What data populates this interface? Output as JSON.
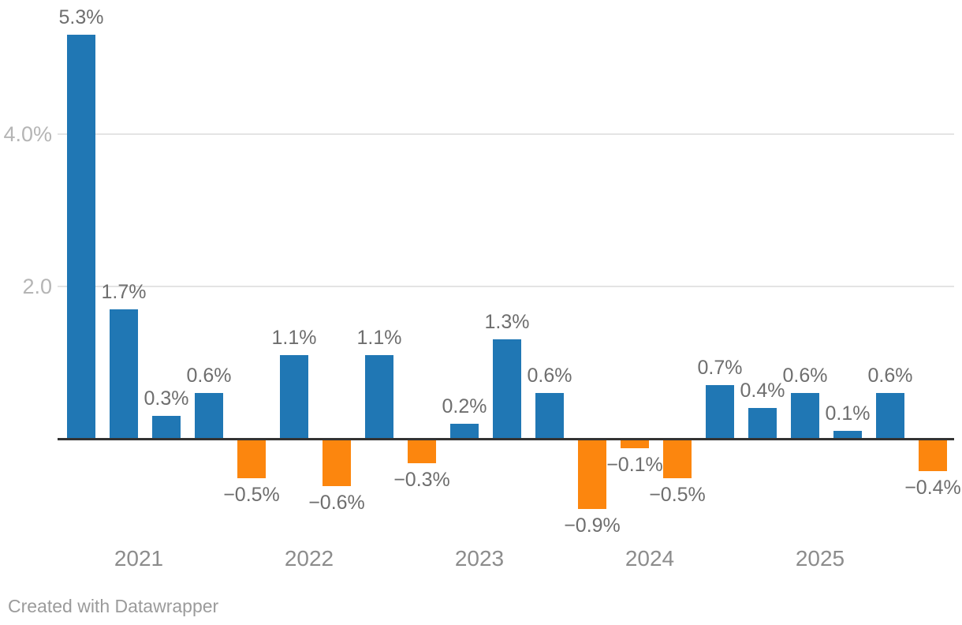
{
  "chart_data": {
    "type": "bar",
    "title": "",
    "unit": "%",
    "values": [
      5.3,
      1.7,
      0.3,
      0.6,
      -0.5,
      1.1,
      -0.6,
      1.1,
      -0.3,
      0.2,
      1.3,
      0.6,
      -0.9,
      -0.1,
      -0.5,
      0.7,
      0.4,
      0.6,
      0.1,
      0.6,
      -0.4
    ],
    "bar_labels": [
      "5.3%",
      "1.7%",
      "0.3%",
      "0.6%",
      "−0.5%",
      "1.1%",
      "−0.6%",
      "1.1%",
      "−0.3%",
      "0.2%",
      "1.3%",
      "0.6%",
      "−0.9%",
      "−0.1%",
      "−0.5%",
      "0.7%",
      "0.4%",
      "0.6%",
      "0.1%",
      "0.6%",
      "−0.4%"
    ],
    "y_axis": {
      "baseline_value": 0,
      "ticks": [
        {
          "label": "2.0",
          "value": 2.0
        },
        {
          "label": "4.0%",
          "value": 4.0
        }
      ]
    },
    "x_axis": {
      "year_ticks": [
        {
          "label": "2021",
          "first_bar_index": 1
        },
        {
          "label": "2022",
          "first_bar_index": 5
        },
        {
          "label": "2023",
          "first_bar_index": 9
        },
        {
          "label": "2024",
          "first_bar_index": 13
        },
        {
          "label": "2025",
          "first_bar_index": 17
        }
      ]
    },
    "colors": {
      "positive_bar": "#2077b4",
      "negative_bar": "#fc860e"
    },
    "grid": true,
    "legend": null,
    "ylim": [
      -1.1,
      5.5
    ]
  },
  "footer": {
    "attribution": "Created with Datawrapper"
  }
}
